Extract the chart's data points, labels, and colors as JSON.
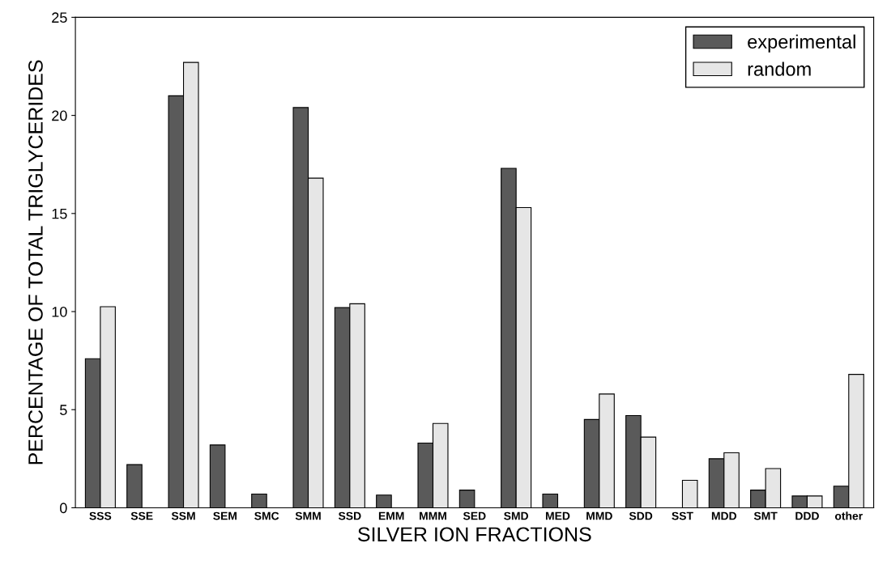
{
  "chart_data": {
    "type": "bar",
    "xlabel": "SILVER ION FRACTIONS",
    "ylabel": "PERCENTAGE OF TOTAL TRIGLYCERIDES",
    "categories": [
      "SSS",
      "SSE",
      "SSM",
      "SEM",
      "SMC",
      "SMM",
      "SSD",
      "EMM",
      "MMM",
      "SED",
      "SMD",
      "MED",
      "MMD",
      "SDD",
      "SST",
      "MDD",
      "SMT",
      "DDD",
      "other"
    ],
    "series": [
      {
        "name": "experimental",
        "color": "#5a5a5a",
        "values": [
          7.6,
          2.2,
          21.0,
          3.2,
          0.7,
          20.4,
          10.2,
          0.65,
          3.3,
          0.9,
          17.3,
          0.7,
          4.5,
          4.7,
          null,
          2.5,
          0.9,
          0.6,
          1.1
        ]
      },
      {
        "name": "random",
        "color": "#e6e6e6",
        "values": [
          10.25,
          null,
          22.7,
          null,
          null,
          16.8,
          10.4,
          null,
          4.3,
          null,
          15.3,
          null,
          5.8,
          3.6,
          1.4,
          2.8,
          2.0,
          0.6,
          6.8
        ]
      }
    ],
    "ylim": [
      0,
      25
    ],
    "yticks": [
      0,
      5,
      10,
      15,
      20,
      25
    ],
    "grid": false,
    "legend": "top right"
  }
}
